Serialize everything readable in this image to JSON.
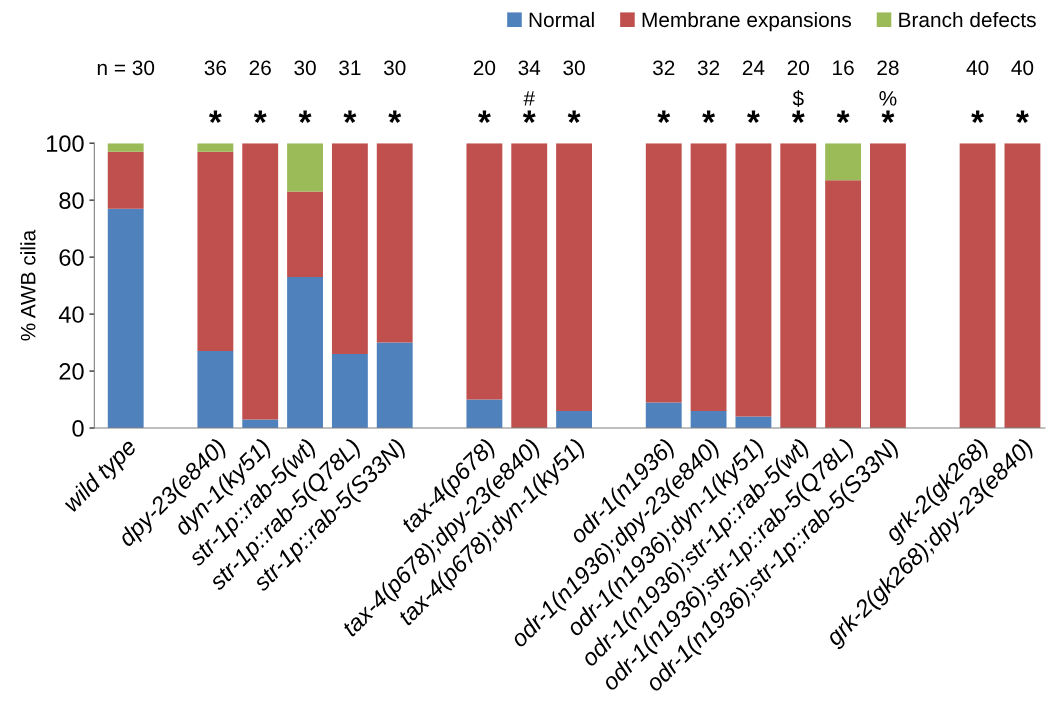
{
  "chart_data": {
    "type": "bar",
    "stacked": true,
    "ylabel": "% AWB cilia",
    "categories": [
      "wild type",
      null,
      "dpy-23(e840)",
      "dyn-1(ky51)",
      "str-1p::rab-5(wt)",
      "str-1p::rab-5(Q78L)",
      "str-1p::rab-5(S33N)",
      null,
      "tax-4(p678)",
      "tax-4(p678);dpy-23(e840)",
      "tax-4(p678);dyn-1(ky51)",
      null,
      "odr-1(n1936)",
      "odr-1(n1936);dpy-23(e840)",
      "odr-1(n1936);dyn-1(ky51)",
      "odr-1(n1936);str-1p::rab-5(wt)",
      "odr-1(n1936);str-1p::rab-5(Q78L)",
      "odr-1(n1936);str-1p::rab-5(S33N)",
      null,
      "grk-2(gk268)",
      "grk-2(gk268);dpy-23(e840)"
    ],
    "series": [
      {
        "name": "Normal",
        "color": "#4f81bd",
        "values": [
          77,
          null,
          27,
          3,
          53,
          26,
          30,
          null,
          10,
          0,
          6,
          null,
          9,
          6,
          4,
          0,
          0,
          0,
          null,
          0,
          0
        ]
      },
      {
        "name": "Membrane expansions",
        "color": "#c0504d",
        "values": [
          20,
          null,
          70,
          97,
          30,
          74,
          70,
          null,
          90,
          100,
          94,
          null,
          91,
          94,
          96,
          100,
          87,
          100,
          null,
          100,
          100
        ]
      },
      {
        "name": "Branch defects",
        "color": "#9bbb59",
        "values": [
          3,
          null,
          3,
          0,
          17,
          0,
          0,
          null,
          0,
          0,
          0,
          null,
          0,
          0,
          0,
          0,
          13,
          0,
          null,
          0,
          0
        ]
      }
    ],
    "ylim": [
      0,
      100
    ],
    "yticks": [
      0,
      20,
      40,
      60,
      80,
      100
    ],
    "grid": false,
    "legend": "top right",
    "annotations": [
      "n = 30",
      "36",
      "26",
      "30",
      "31",
      "30",
      "20",
      "34",
      "30",
      "32",
      "32",
      "24",
      "20",
      "16",
      "28",
      "40",
      "40",
      {
        "text": "#",
        "x": "tax-4(p678);dpy-23(e840)",
        "y": 100
      },
      {
        "text": "$",
        "x": "odr-1(n1936);str-1p::rab-5(wt)",
        "y": 100
      },
      {
        "text": "%",
        "x": "odr-1(n1936);str-1p::rab-5(S33N)",
        "y": 100
      },
      {
        "text": "*",
        "x": "dpy-23(e840)",
        "y": 100
      },
      {
        "text": "*",
        "x": "dyn-1(ky51)",
        "y": 100
      },
      {
        "text": "*",
        "x": "str-1p::rab-5(wt)",
        "y": 100
      },
      {
        "text": "*",
        "x": "str-1p::rab-5(Q78L)",
        "y": 100
      },
      {
        "text": "*",
        "x": "str-1p::rab-5(S33N)",
        "y": 100
      },
      {
        "text": "*",
        "x": "tax-4(p678)",
        "y": 100
      },
      {
        "text": "*",
        "x": "tax-4(p678);dpy-23(e840)",
        "y": 100
      },
      {
        "text": "*",
        "x": "tax-4(p678);dyn-1(ky51)",
        "y": 100
      },
      {
        "text": "*",
        "x": "odr-1(n1936)",
        "y": 100
      },
      {
        "text": "*",
        "x": "odr-1(n1936);dpy-23(e840)",
        "y": 100
      },
      {
        "text": "*",
        "x": "odr-1(n1936);dyn-1(ky51)",
        "y": 100
      },
      {
        "text": "*",
        "x": "odr-1(n1936);str-1p::rab-5(wt)",
        "y": 100
      },
      {
        "text": "*",
        "x": "odr-1(n1936);str-1p::rab-5(Q78L)",
        "y": 100
      },
      {
        "text": "*",
        "x": "odr-1(n1936);str-1p::rab-5(S33N)",
        "y": 100
      },
      {
        "text": "*",
        "x": "grk-2(gk268)",
        "y": 100
      },
      {
        "text": "*",
        "x": "grk-2(gk268);dpy-23(e840)",
        "y": 100
      }
    ]
  }
}
